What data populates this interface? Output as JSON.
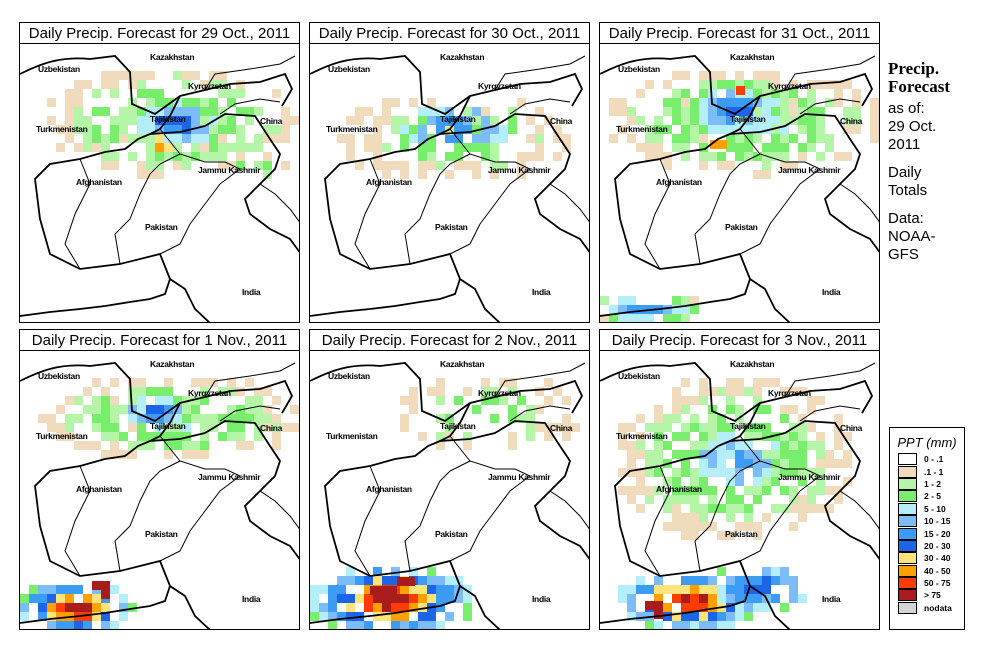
{
  "sidebar": {
    "heading_line1": "Precip.",
    "heading_line2": "Forecast",
    "asof_line1": "as of:",
    "asof_line2": "29 Oct.",
    "asof_line3": "2011",
    "totals_line1": "Daily",
    "totals_line2": "Totals",
    "data_line1": "Data:",
    "data_line2": "NOAA-",
    "data_line3": "GFS"
  },
  "legend": {
    "title": "PPT (mm)",
    "items": [
      {
        "label": "0 - .1",
        "color": "#ffffff"
      },
      {
        "label": ".1 - 1",
        "color": "#f0dcbc"
      },
      {
        "label": "1 - 2",
        "color": "#b4f5a8"
      },
      {
        "label": "2 - 5",
        "color": "#78ee6c"
      },
      {
        "label": "5 - 10",
        "color": "#b4eef8"
      },
      {
        "label": "10 - 15",
        "color": "#7cbcf8"
      },
      {
        "label": "15 - 20",
        "color": "#3c9cf4"
      },
      {
        "label": "20 - 30",
        "color": "#1c64e8"
      },
      {
        "label": "30 - 40",
        "color": "#ffe47c"
      },
      {
        "label": "40 - 50",
        "color": "#ffa000"
      },
      {
        "label": "50 - 75",
        "color": "#ff3c00"
      },
      {
        "label": "> 75",
        "color": "#a81c1c"
      },
      {
        "label": "nodata",
        "color": "#d4d4d4"
      }
    ]
  },
  "map_labels": {
    "kazakhstan": "Kazakhstan",
    "uzbekistan": "Uzbekistan",
    "kyrgyzstan": "Kyrgyzstan",
    "tajikistan": "Tajikistan",
    "turkmenistan": "Turkmenistan",
    "china": "China",
    "afghanistan": "Afghanistan",
    "jammu_kashmir": "Jammu Kashmir",
    "pakistan": "Pakistan",
    "india": "India"
  },
  "panels": [
    {
      "title": "Daily Precip. Forecast for  29 Oct., 2011",
      "date": "29 Oct., 2011",
      "cells": "north_moderate_orange"
    },
    {
      "title": "Daily Precip. Forecast for  30 Oct., 2011",
      "date": "30 Oct., 2011",
      "cells": "central_light"
    },
    {
      "title": "Daily Precip. Forecast for  31 Oct., 2011",
      "date": "31 Oct., 2011",
      "cells": "north_wide_south_sea"
    },
    {
      "title": "Daily Precip. Forecast for  1 Nov., 2011",
      "date": "1 Nov., 2011",
      "cells": "north_and_southwest_heavy"
    },
    {
      "title": "Daily Precip. Forecast for  2 Nov., 2011",
      "date": "2 Nov., 2011",
      "cells": "south_heavy"
    },
    {
      "title": "Daily Precip. Forecast for  3 Nov., 2011",
      "date": "3 Nov., 2011",
      "cells": "afghan_wide_south_heavy"
    }
  ]
}
